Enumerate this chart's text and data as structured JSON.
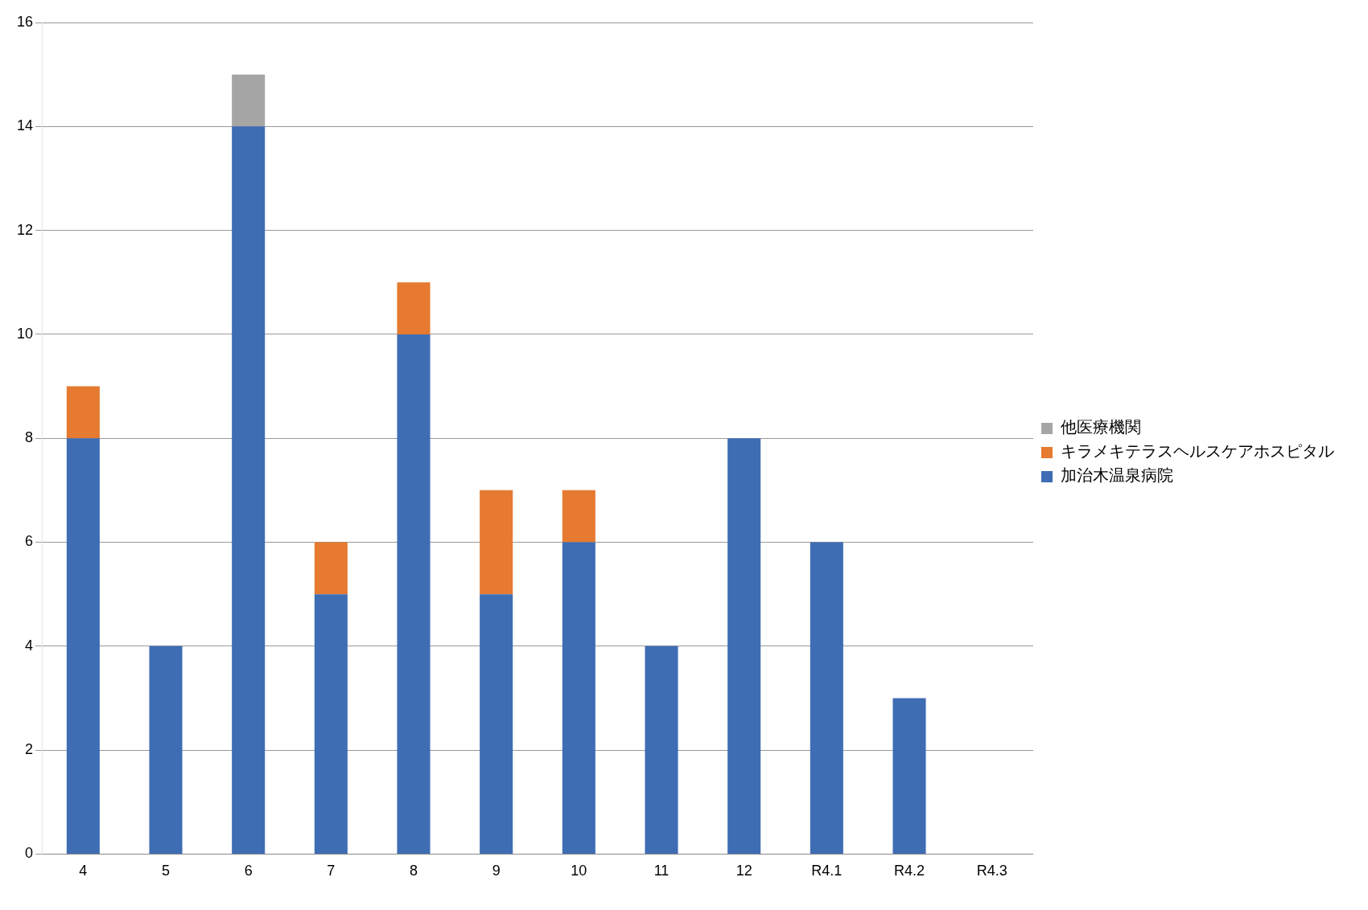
{
  "chart_data": {
    "type": "bar",
    "stacked": true,
    "categories": [
      "4",
      "5",
      "6",
      "7",
      "8",
      "9",
      "10",
      "11",
      "12",
      "R4.1",
      "R4.2",
      "R4.3"
    ],
    "series": [
      {
        "name": "加治木温泉病院",
        "color": "#3e6db4",
        "values": [
          8,
          4,
          14,
          5,
          10,
          5,
          6,
          4,
          8,
          6,
          3,
          0
        ]
      },
      {
        "name": "キラメキテラスヘルスケアホスピタル",
        "color": "#e57a30",
        "values": [
          1,
          0,
          0,
          1,
          1,
          2,
          1,
          0,
          0,
          0,
          0,
          0
        ]
      },
      {
        "name": "他医療機関",
        "color": "#a5a5a5",
        "values": [
          0,
          0,
          1,
          0,
          0,
          0,
          0,
          0,
          0,
          0,
          0,
          0
        ]
      }
    ],
    "ylim": [
      0,
      16
    ],
    "yticks": [
      0,
      2,
      4,
      6,
      8,
      10,
      12,
      14,
      16
    ],
    "grid": "y",
    "legend": "right"
  }
}
